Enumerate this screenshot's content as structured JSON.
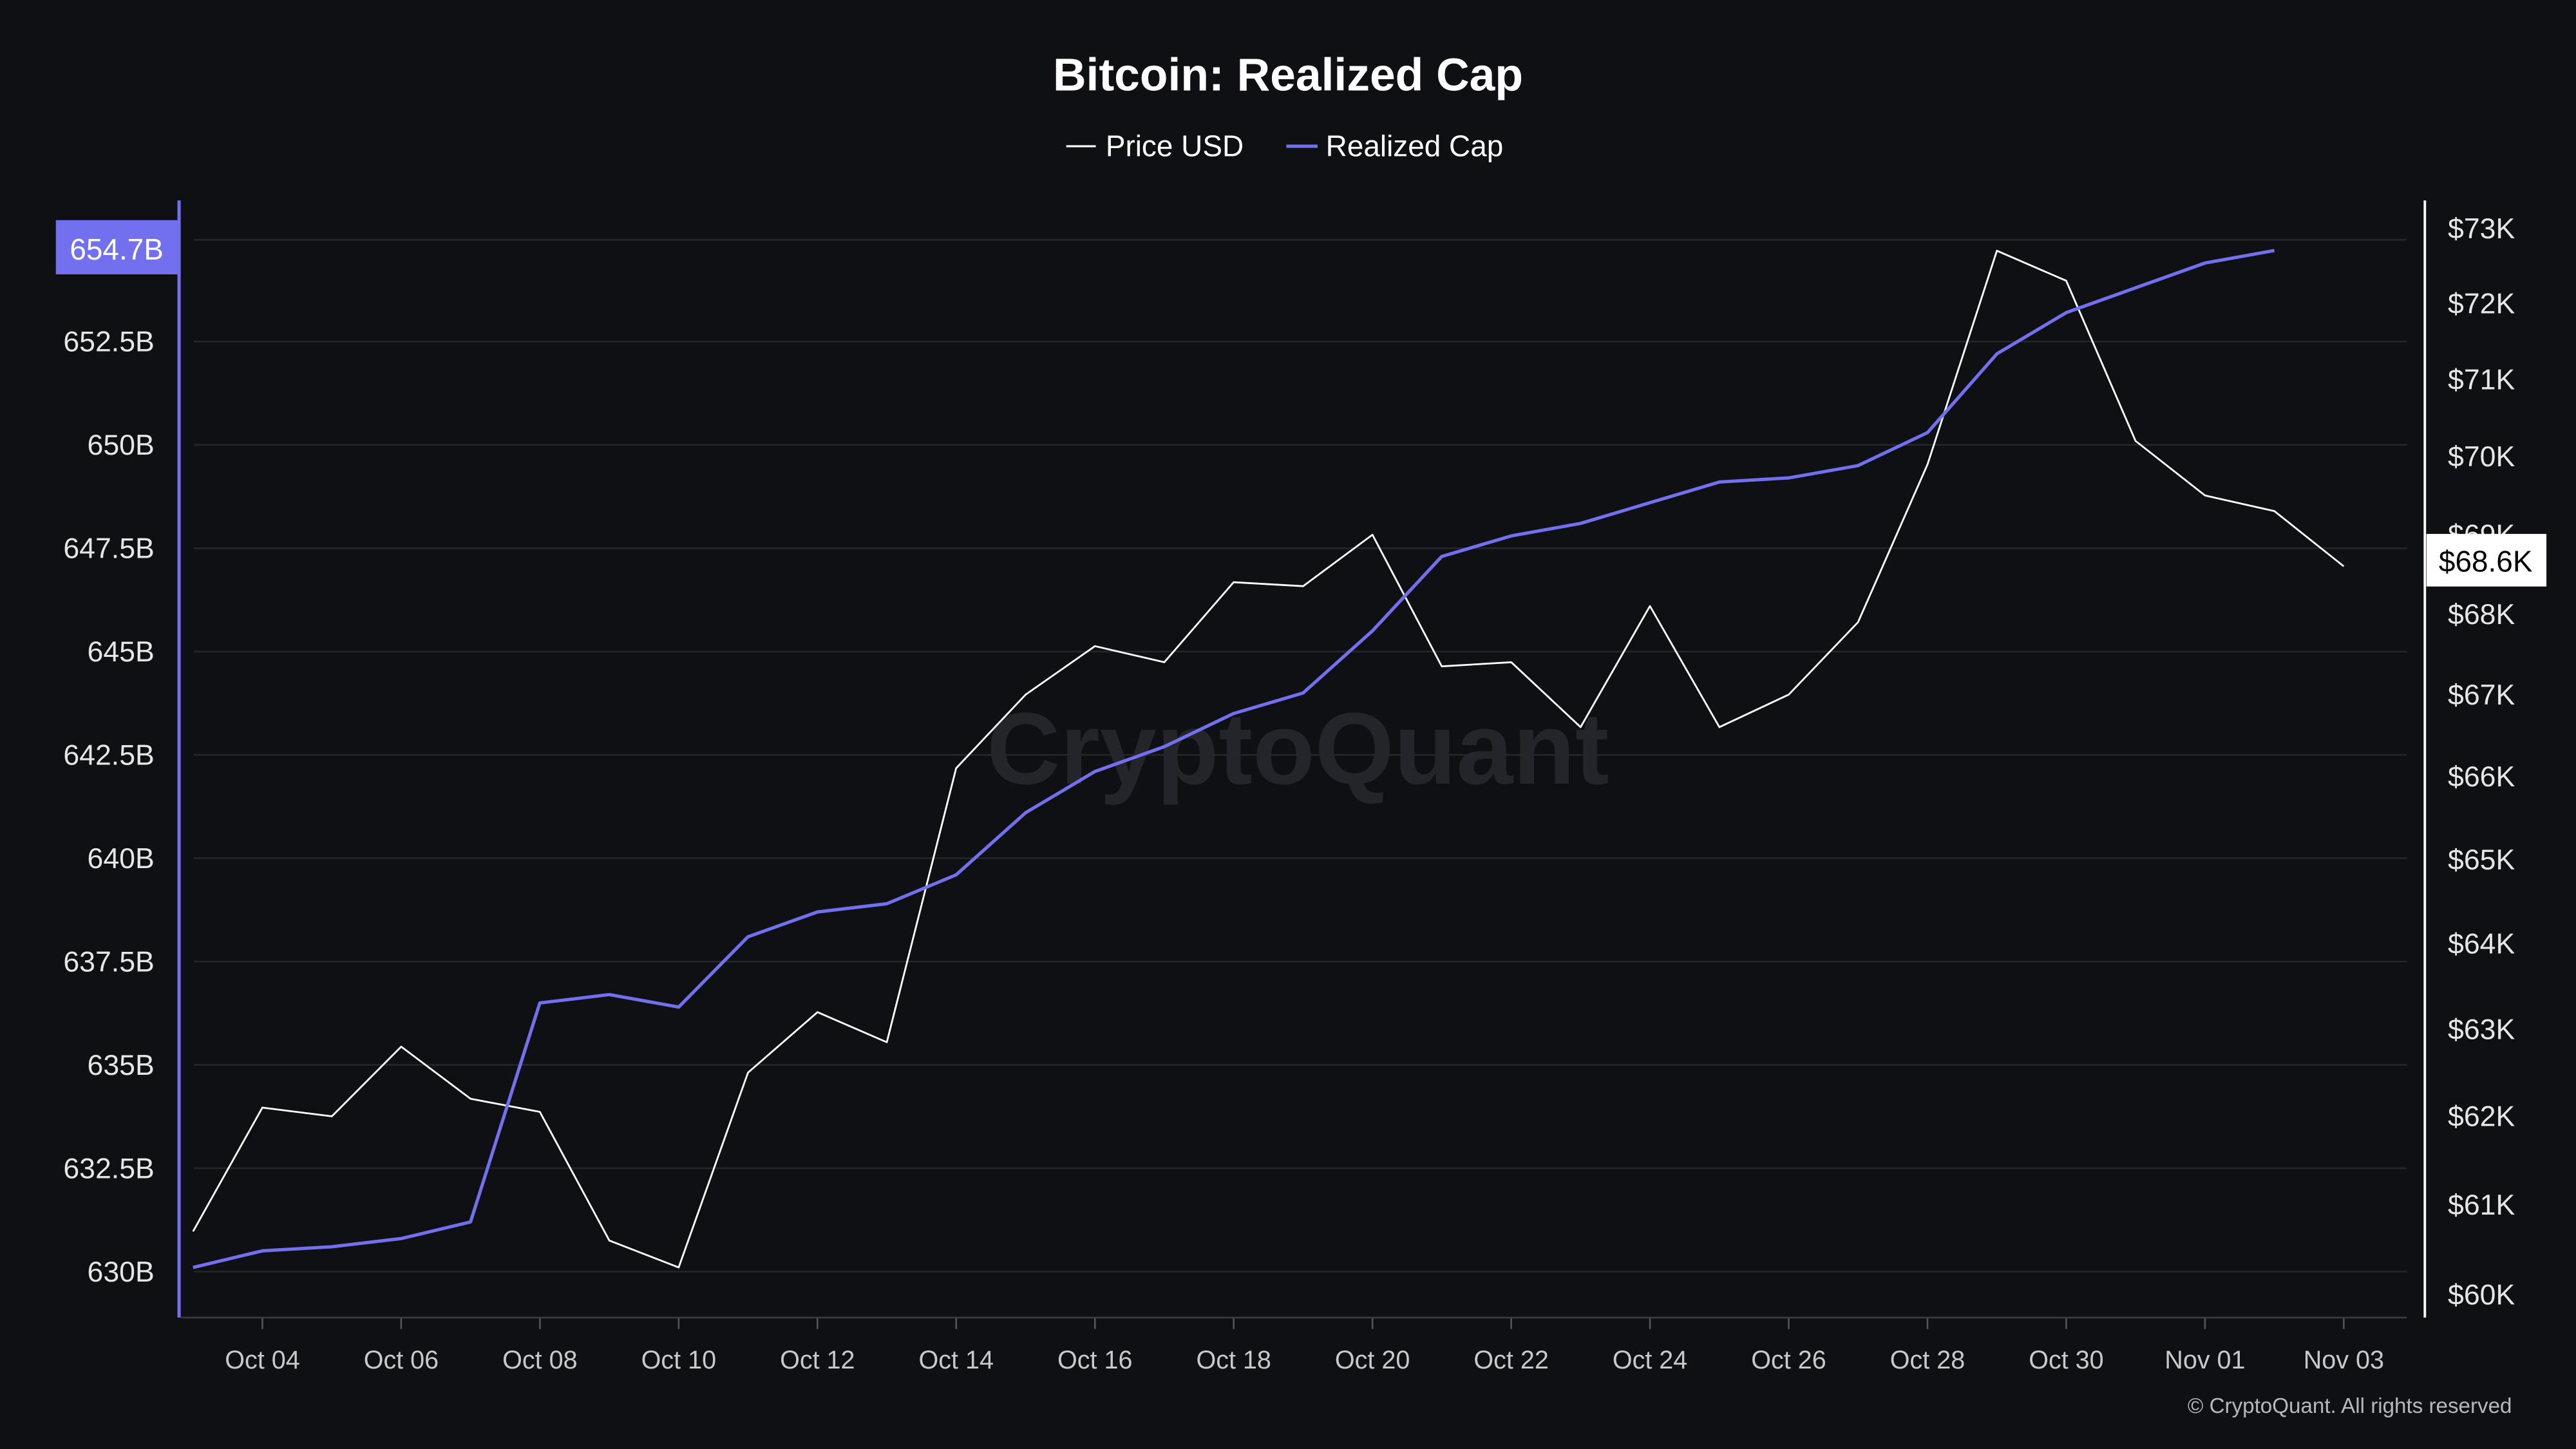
{
  "chart_data": {
    "type": "line",
    "title": "Bitcoin: Realized Cap",
    "legend": {
      "placement": "top-center",
      "entries": [
        "Price USD",
        "Realized Cap"
      ]
    },
    "x": [
      "Oct 03",
      "Oct 04",
      "Oct 05",
      "Oct 06",
      "Oct 07",
      "Oct 08",
      "Oct 09",
      "Oct 10",
      "Oct 11",
      "Oct 12",
      "Oct 13",
      "Oct 14",
      "Oct 15",
      "Oct 16",
      "Oct 17",
      "Oct 18",
      "Oct 19",
      "Oct 20",
      "Oct 21",
      "Oct 22",
      "Oct 23",
      "Oct 24",
      "Oct 25",
      "Oct 26",
      "Oct 27",
      "Oct 28",
      "Oct 29",
      "Oct 30",
      "Oct 31",
      "Nov 01",
      "Nov 02",
      "Nov 03"
    ],
    "x_tick_labels": [
      "Oct 04",
      "Oct 06",
      "Oct 08",
      "Oct 10",
      "Oct 12",
      "Oct 14",
      "Oct 16",
      "Oct 18",
      "Oct 20",
      "Oct 22",
      "Oct 24",
      "Oct 26",
      "Oct 28",
      "Oct 30",
      "Nov 01",
      "Nov 03"
    ],
    "series": [
      {
        "name": "Price USD",
        "axis": "right",
        "color": "#ffffff",
        "unit": "USD thousands",
        "values": [
          60.7,
          62.1,
          62.0,
          62.8,
          62.2,
          62.05,
          60.6,
          60.3,
          62.5,
          63.2,
          62.85,
          66.1,
          67.0,
          67.6,
          67.4,
          68.4,
          68.35,
          69.0,
          67.35,
          67.4,
          66.6,
          68.1,
          66.6,
          67.0,
          67.9,
          69.9,
          72.7,
          72.3,
          70.2,
          69.5,
          69.3,
          68.6
        ]
      },
      {
        "name": "Realized Cap",
        "axis": "left",
        "color": "#7370f0",
        "unit": "USD billions",
        "values": [
          630.1,
          630.5,
          630.6,
          630.8,
          631.2,
          636.5,
          636.7,
          636.4,
          638.1,
          638.7,
          638.9,
          639.6,
          641.1,
          642.1,
          642.7,
          643.5,
          644.0,
          645.5,
          647.3,
          647.8,
          648.1,
          648.6,
          649.1,
          649.2,
          649.5,
          650.3,
          652.2,
          653.2,
          653.8,
          654.4,
          654.7,
          null
        ]
      }
    ],
    "left_axis": {
      "scale": "linear",
      "ylim": [
        630,
        654.7
      ],
      "ticks": [
        630,
        632.5,
        635,
        637.5,
        640,
        642.5,
        645,
        647.5,
        650,
        652.5
      ],
      "tick_labels": [
        "630B",
        "632.5B",
        "635B",
        "637.5B",
        "640B",
        "642.5B",
        "645B",
        "647.5B",
        "650B",
        "652.5B"
      ],
      "current_label": "654.7B",
      "current_value": 654.7
    },
    "right_axis": {
      "scale": "log",
      "ylim": [
        60,
        73
      ],
      "ticks": [
        60,
        61,
        62,
        63,
        64,
        65,
        66,
        67,
        68,
        69,
        70,
        71,
        72,
        73
      ],
      "tick_labels": [
        "$60K",
        "$61K",
        "$62K",
        "$63K",
        "$64K",
        "$65K",
        "$66K",
        "$67K",
        "$68K",
        "$69K",
        "$70K",
        "$71K",
        "$72K",
        "$73K"
      ],
      "current_label": "$68.6K",
      "current_value": 68.6
    },
    "grid": true
  },
  "watermark": "CryptoQuant",
  "copyright": "© CryptoQuant. All rights reserved",
  "colors": {
    "background": "#0f1013",
    "grid": "#25262b",
    "accent": "#7370f0"
  }
}
